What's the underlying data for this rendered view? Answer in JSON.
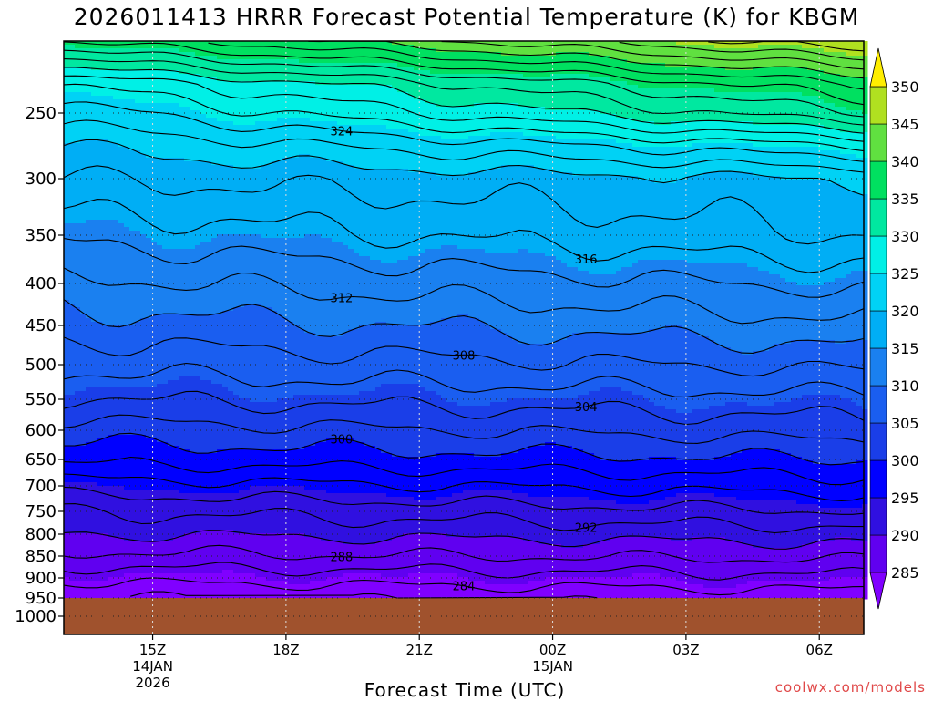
{
  "chart_data": {
    "type": "heatmap",
    "title": "2026011413 HRRR Forecast Potential Temperature (K) for KBGM",
    "xlabel": "Forecast Time (UTC)",
    "ylabel": "",
    "watermark": "coolwx.com/models",
    "x_ticks": [
      {
        "hour": 1,
        "label": "15Z",
        "sublabels": [
          "14JAN",
          "2026"
        ]
      },
      {
        "hour": 4,
        "label": "18Z",
        "sublabels": []
      },
      {
        "hour": 7,
        "label": "21Z",
        "sublabels": []
      },
      {
        "hour": 10,
        "label": "00Z",
        "sublabels": [
          "15JAN"
        ]
      },
      {
        "hour": 13,
        "label": "03Z",
        "sublabels": []
      },
      {
        "hour": 16,
        "label": "06Z",
        "sublabels": []
      }
    ],
    "xlim": [
      -1,
      17
    ],
    "y_ticks": [
      250,
      300,
      350,
      400,
      450,
      500,
      550,
      600,
      650,
      700,
      750,
      800,
      850,
      900,
      950,
      1000
    ],
    "ylim_hpa": [
      200,
      1025
    ],
    "surface_pressure_hpa": 950,
    "colorbar": {
      "levels": [
        285,
        290,
        295,
        300,
        305,
        310,
        315,
        320,
        325,
        330,
        335,
        340,
        345,
        350
      ],
      "colors": [
        "#8000ff",
        "#6000f0",
        "#3010e0",
        "#0000ff",
        "#1a3ee8",
        "#1a5ef0",
        "#1a80f0",
        "#00aef5",
        "#00d2f5",
        "#00f0e6",
        "#00e8a0",
        "#00e060",
        "#60e040",
        "#b0e020",
        "#ffee00"
      ]
    },
    "contours": [
      {
        "theta": 282,
        "label": ""
      },
      {
        "theta": 284,
        "label": "284"
      },
      {
        "theta": 286,
        "label": ""
      },
      {
        "theta": 288,
        "label": "288"
      },
      {
        "theta": 290,
        "label": ""
      },
      {
        "theta": 292,
        "label": "292"
      },
      {
        "theta": 294,
        "label": ""
      },
      {
        "theta": 296,
        "label": ""
      },
      {
        "theta": 298,
        "label": ""
      },
      {
        "theta": 300,
        "label": "300"
      },
      {
        "theta": 302,
        "label": ""
      },
      {
        "theta": 304,
        "label": "304"
      },
      {
        "theta": 306,
        "label": ""
      },
      {
        "theta": 308,
        "label": "308"
      },
      {
        "theta": 310,
        "label": ""
      },
      {
        "theta": 312,
        "label": "312"
      },
      {
        "theta": 314,
        "label": ""
      },
      {
        "theta": 316,
        "label": "316"
      },
      {
        "theta": 318,
        "label": ""
      },
      {
        "theta": 320,
        "label": ""
      },
      {
        "theta": 322,
        "label": ""
      },
      {
        "theta": 324,
        "label": "324"
      },
      {
        "theta": 326,
        "label": ""
      },
      {
        "theta": 328,
        "label": ""
      },
      {
        "theta": 330,
        "label": ""
      },
      {
        "theta": 332,
        "label": ""
      },
      {
        "theta": 334,
        "label": ""
      },
      {
        "theta": 336,
        "label": ""
      },
      {
        "theta": 338,
        "label": ""
      },
      {
        "theta": 340,
        "label": ""
      },
      {
        "theta": 342,
        "label": ""
      },
      {
        "theta": 344,
        "label": ""
      },
      {
        "theta": 346,
        "label": ""
      }
    ],
    "profile": [
      {
        "p": 200,
        "theta_start": 336,
        "theta_end": 348
      },
      {
        "p": 230,
        "theta_start": 326,
        "theta_end": 338
      },
      {
        "p": 250,
        "theta_start": 323,
        "theta_end": 334
      },
      {
        "p": 275,
        "theta_start": 320,
        "theta_end": 326
      },
      {
        "p": 300,
        "theta_start": 318,
        "theta_end": 320
      },
      {
        "p": 350,
        "theta_start": 314.5,
        "theta_end": 318
      },
      {
        "p": 400,
        "theta_start": 311.5,
        "theta_end": 314.5
      },
      {
        "p": 450,
        "theta_start": 309,
        "theta_end": 311.5
      },
      {
        "p": 500,
        "theta_start": 306.5,
        "theta_end": 308.5
      },
      {
        "p": 550,
        "theta_start": 304,
        "theta_end": 305.5
      },
      {
        "p": 600,
        "theta_start": 301,
        "theta_end": 303
      },
      {
        "p": 650,
        "theta_start": 298.5,
        "theta_end": 300
      },
      {
        "p": 700,
        "theta_start": 295,
        "theta_end": 297
      },
      {
        "p": 750,
        "theta_start": 292,
        "theta_end": 294
      },
      {
        "p": 800,
        "theta_start": 290,
        "theta_end": 291
      },
      {
        "p": 850,
        "theta_start": 287.5,
        "theta_end": 288.5
      },
      {
        "p": 900,
        "theta_start": 284.5,
        "theta_end": 285.5
      },
      {
        "p": 950,
        "theta_start": 282,
        "theta_end": 283
      }
    ]
  }
}
